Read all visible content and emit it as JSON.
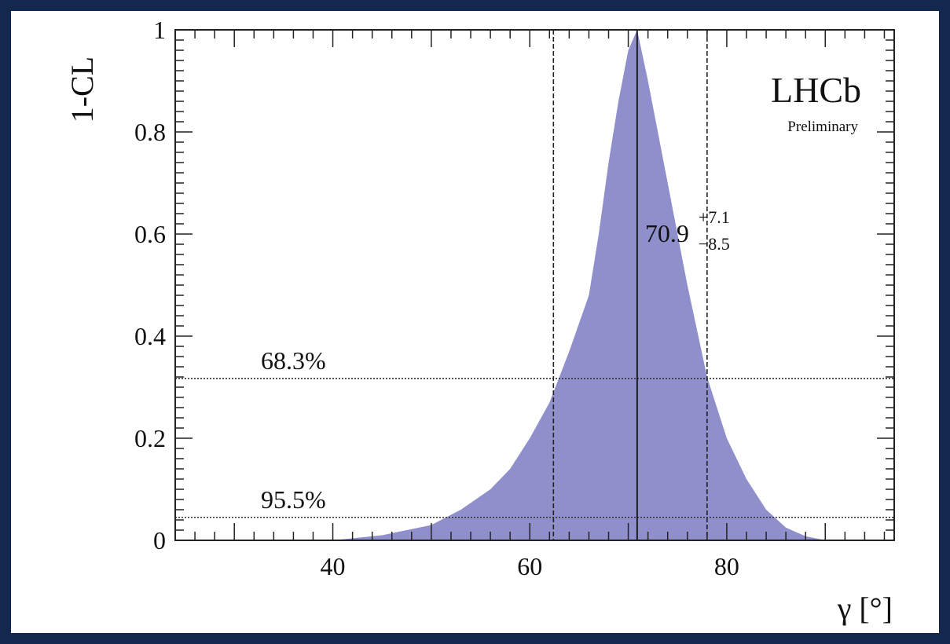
{
  "chart_data": {
    "type": "area",
    "ylabel": "1-CL",
    "xlabel": "γ [°]",
    "xlim": [
      24,
      97
    ],
    "ylim": [
      0,
      1
    ],
    "x_ticks": [
      40,
      60,
      80
    ],
    "x_tick_labels": [
      "40",
      "60",
      "80"
    ],
    "y_ticks": [
      0,
      0.2,
      0.4,
      0.6,
      0.8,
      1
    ],
    "y_tick_labels": [
      "0",
      "0.2",
      "0.4",
      "0.6",
      "0.8",
      "1"
    ],
    "fill_color": "#8f8fcc",
    "series": [
      {
        "x": [
          40,
          45,
          50,
          53,
          56,
          58,
          60,
          62,
          64,
          66,
          67,
          68,
          69,
          70,
          70.9,
          72,
          74,
          76,
          78,
          80,
          82,
          84,
          86,
          88,
          90
        ],
        "values": [
          0.0,
          0.01,
          0.03,
          0.06,
          0.1,
          0.14,
          0.2,
          0.27,
          0.37,
          0.48,
          0.6,
          0.74,
          0.86,
          0.96,
          1.0,
          0.9,
          0.7,
          0.5,
          0.32,
          0.2,
          0.12,
          0.06,
          0.025,
          0.008,
          0.0
        ]
      }
    ],
    "central_value": 70.9,
    "interval_68": [
      62.4,
      78.0
    ],
    "cl_lines": [
      {
        "label": "68.3%",
        "y": 0.317
      },
      {
        "label": "95.5%",
        "y": 0.045
      }
    ],
    "result": {
      "value": "70.9",
      "plus": "+7.1",
      "minus": "−8.5"
    },
    "experiment": "LHCb",
    "status": "Preliminary"
  }
}
